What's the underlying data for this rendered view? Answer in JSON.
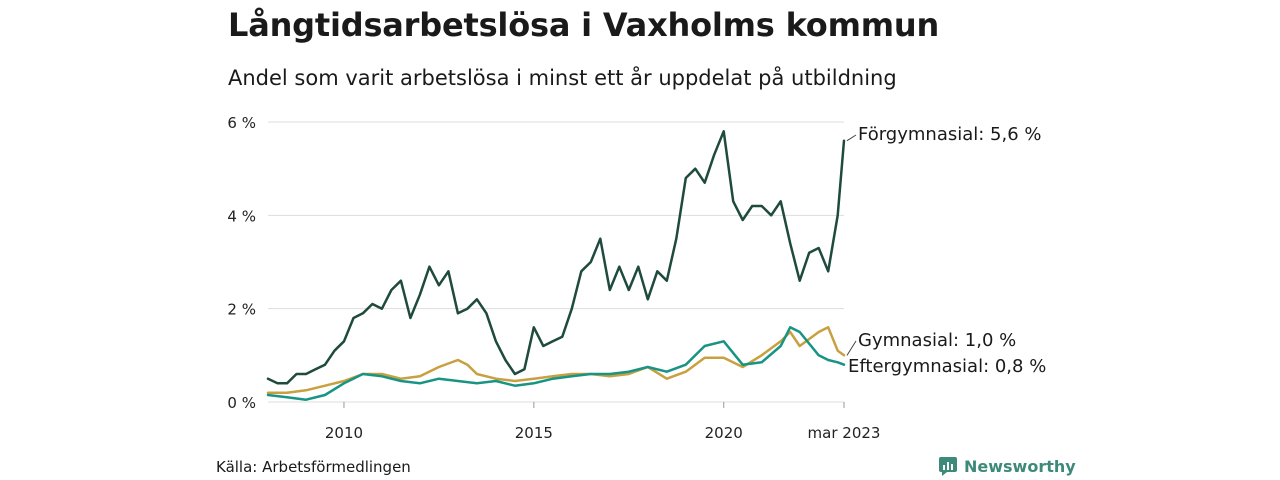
{
  "title": "Långtidsarbetslösa i Vaxholms kommun",
  "subtitle": "Andel som varit arbetslösa i minst ett år uppdelat på utbildning",
  "source": "Källa: Arbetsförmedlingen",
  "brand": "Newsworthy",
  "colors": {
    "forgymnasial": "#1f4a3e",
    "gymnasial": "#c9a040",
    "eftergymnasial": "#179484",
    "brand": "#3d8a7b",
    "grid": "#dddddd"
  },
  "chart_data": {
    "type": "line",
    "x_range": [
      "2008-01",
      "2023-03"
    ],
    "ylim": [
      0,
      6
    ],
    "y_ticks": [
      0,
      2,
      4,
      6
    ],
    "y_tick_labels": [
      "0 %",
      "2 %",
      "4 %",
      "6 %"
    ],
    "x_tick_labels": [
      {
        "date": "2010-01",
        "label": "2010"
      },
      {
        "date": "2015-01",
        "label": "2015"
      },
      {
        "date": "2020-01",
        "label": "2020"
      },
      {
        "date": "2023-03",
        "label": "mar 2023"
      }
    ],
    "grid": true,
    "legend": "end-of-line labels",
    "series": [
      {
        "name": "Förgymnasial",
        "end_label": "Förgymnasial: 5,6 %",
        "color_key": "forgymnasial",
        "points": [
          [
            "2008-01",
            0.5
          ],
          [
            "2008-04",
            0.4
          ],
          [
            "2008-07",
            0.4
          ],
          [
            "2008-10",
            0.6
          ],
          [
            "2009-01",
            0.6
          ],
          [
            "2009-04",
            0.7
          ],
          [
            "2009-07",
            0.8
          ],
          [
            "2009-10",
            1.1
          ],
          [
            "2010-01",
            1.3
          ],
          [
            "2010-04",
            1.8
          ],
          [
            "2010-07",
            1.9
          ],
          [
            "2010-10",
            2.1
          ],
          [
            "2011-01",
            2.0
          ],
          [
            "2011-04",
            2.4
          ],
          [
            "2011-07",
            2.6
          ],
          [
            "2011-10",
            1.8
          ],
          [
            "2012-01",
            2.3
          ],
          [
            "2012-04",
            2.9
          ],
          [
            "2012-07",
            2.5
          ],
          [
            "2012-10",
            2.8
          ],
          [
            "2013-01",
            1.9
          ],
          [
            "2013-04",
            2.0
          ],
          [
            "2013-07",
            2.2
          ],
          [
            "2013-10",
            1.9
          ],
          [
            "2014-01",
            1.3
          ],
          [
            "2014-04",
            0.9
          ],
          [
            "2014-07",
            0.6
          ],
          [
            "2014-10",
            0.7
          ],
          [
            "2015-01",
            1.6
          ],
          [
            "2015-04",
            1.2
          ],
          [
            "2015-07",
            1.3
          ],
          [
            "2015-10",
            1.4
          ],
          [
            "2016-01",
            2.0
          ],
          [
            "2016-04",
            2.8
          ],
          [
            "2016-07",
            3.0
          ],
          [
            "2016-10",
            3.5
          ],
          [
            "2017-01",
            2.4
          ],
          [
            "2017-04",
            2.9
          ],
          [
            "2017-07",
            2.4
          ],
          [
            "2017-10",
            2.9
          ],
          [
            "2018-01",
            2.2
          ],
          [
            "2018-04",
            2.8
          ],
          [
            "2018-07",
            2.6
          ],
          [
            "2018-10",
            3.5
          ],
          [
            "2019-01",
            4.8
          ],
          [
            "2019-04",
            5.0
          ],
          [
            "2019-07",
            4.7
          ],
          [
            "2019-10",
            5.3
          ],
          [
            "2020-01",
            5.8
          ],
          [
            "2020-04",
            4.3
          ],
          [
            "2020-07",
            3.9
          ],
          [
            "2020-10",
            4.2
          ],
          [
            "2021-01",
            4.2
          ],
          [
            "2021-04",
            4.0
          ],
          [
            "2021-07",
            4.3
          ],
          [
            "2021-10",
            3.4
          ],
          [
            "2022-01",
            2.6
          ],
          [
            "2022-04",
            3.2
          ],
          [
            "2022-07",
            3.3
          ],
          [
            "2022-10",
            2.8
          ],
          [
            "2023-01",
            4.0
          ],
          [
            "2023-03",
            5.6
          ]
        ]
      },
      {
        "name": "Gymnasial",
        "end_label": "Gymnasial: 1,0 %",
        "color_key": "gymnasial",
        "points": [
          [
            "2008-01",
            0.2
          ],
          [
            "2008-07",
            0.2
          ],
          [
            "2009-01",
            0.25
          ],
          [
            "2009-07",
            0.35
          ],
          [
            "2010-01",
            0.45
          ],
          [
            "2010-07",
            0.6
          ],
          [
            "2011-01",
            0.6
          ],
          [
            "2011-07",
            0.5
          ],
          [
            "2012-01",
            0.55
          ],
          [
            "2012-07",
            0.75
          ],
          [
            "2013-01",
            0.9
          ],
          [
            "2013-04",
            0.8
          ],
          [
            "2013-07",
            0.6
          ],
          [
            "2014-01",
            0.5
          ],
          [
            "2014-07",
            0.45
          ],
          [
            "2015-01",
            0.5
          ],
          [
            "2015-07",
            0.55
          ],
          [
            "2016-01",
            0.6
          ],
          [
            "2016-07",
            0.6
          ],
          [
            "2017-01",
            0.55
          ],
          [
            "2017-07",
            0.6
          ],
          [
            "2018-01",
            0.75
          ],
          [
            "2018-07",
            0.5
          ],
          [
            "2019-01",
            0.65
          ],
          [
            "2019-07",
            0.95
          ],
          [
            "2020-01",
            0.95
          ],
          [
            "2020-07",
            0.75
          ],
          [
            "2021-01",
            1.0
          ],
          [
            "2021-07",
            1.3
          ],
          [
            "2021-10",
            1.5
          ],
          [
            "2022-01",
            1.2
          ],
          [
            "2022-07",
            1.5
          ],
          [
            "2022-10",
            1.6
          ],
          [
            "2023-01",
            1.1
          ],
          [
            "2023-03",
            1.0
          ]
        ]
      },
      {
        "name": "Eftergymnasial",
        "end_label": "Eftergymnasial: 0,8 %",
        "color_key": "eftergymnasial",
        "points": [
          [
            "2008-01",
            0.15
          ],
          [
            "2008-07",
            0.1
          ],
          [
            "2009-01",
            0.05
          ],
          [
            "2009-07",
            0.15
          ],
          [
            "2010-01",
            0.4
          ],
          [
            "2010-07",
            0.6
          ],
          [
            "2011-01",
            0.55
          ],
          [
            "2011-07",
            0.45
          ],
          [
            "2012-01",
            0.4
          ],
          [
            "2012-07",
            0.5
          ],
          [
            "2013-01",
            0.45
          ],
          [
            "2013-07",
            0.4
          ],
          [
            "2014-01",
            0.45
          ],
          [
            "2014-07",
            0.35
          ],
          [
            "2015-01",
            0.4
          ],
          [
            "2015-07",
            0.5
          ],
          [
            "2016-01",
            0.55
          ],
          [
            "2016-07",
            0.6
          ],
          [
            "2017-01",
            0.6
          ],
          [
            "2017-07",
            0.65
          ],
          [
            "2018-01",
            0.75
          ],
          [
            "2018-07",
            0.65
          ],
          [
            "2019-01",
            0.8
          ],
          [
            "2019-07",
            1.2
          ],
          [
            "2020-01",
            1.3
          ],
          [
            "2020-07",
            0.8
          ],
          [
            "2021-01",
            0.85
          ],
          [
            "2021-07",
            1.2
          ],
          [
            "2021-10",
            1.6
          ],
          [
            "2022-01",
            1.5
          ],
          [
            "2022-07",
            1.0
          ],
          [
            "2022-10",
            0.9
          ],
          [
            "2023-01",
            0.85
          ],
          [
            "2023-03",
            0.8
          ]
        ]
      }
    ]
  }
}
